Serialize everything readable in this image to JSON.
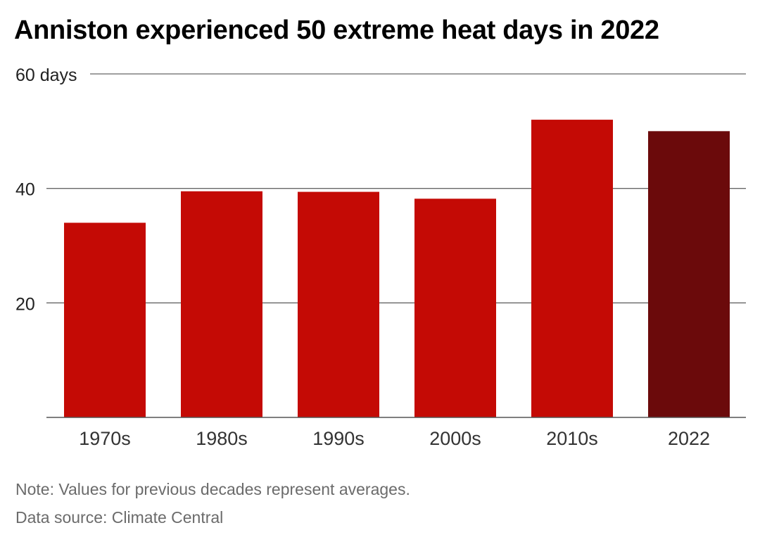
{
  "title": "Anniston experienced 50 extreme heat days in 2022",
  "footer": {
    "note": "Note: Values for previous decades represent averages.",
    "source": "Data source: Climate Central"
  },
  "chart_data": {
    "type": "bar",
    "title": "Anniston experienced 50 extreme heat days in 2022",
    "xlabel": "",
    "ylabel": "",
    "y_unit": "days",
    "ylim": [
      0,
      60
    ],
    "yticks": [
      20,
      40,
      60
    ],
    "ytick_labels": [
      "20",
      "40",
      "60 days"
    ],
    "grid": true,
    "categories": [
      "1970s",
      "1980s",
      "1990s",
      "2000s",
      "2010s",
      "2022"
    ],
    "values": [
      34,
      39.5,
      39.4,
      38.2,
      52,
      50
    ],
    "colors": {
      "decade": "#c40a05",
      "highlight": "#6b0a0b",
      "gridline": "#666666",
      "axis": "#555555",
      "tick_text": "#333333"
    },
    "highlight_category": "2022"
  }
}
